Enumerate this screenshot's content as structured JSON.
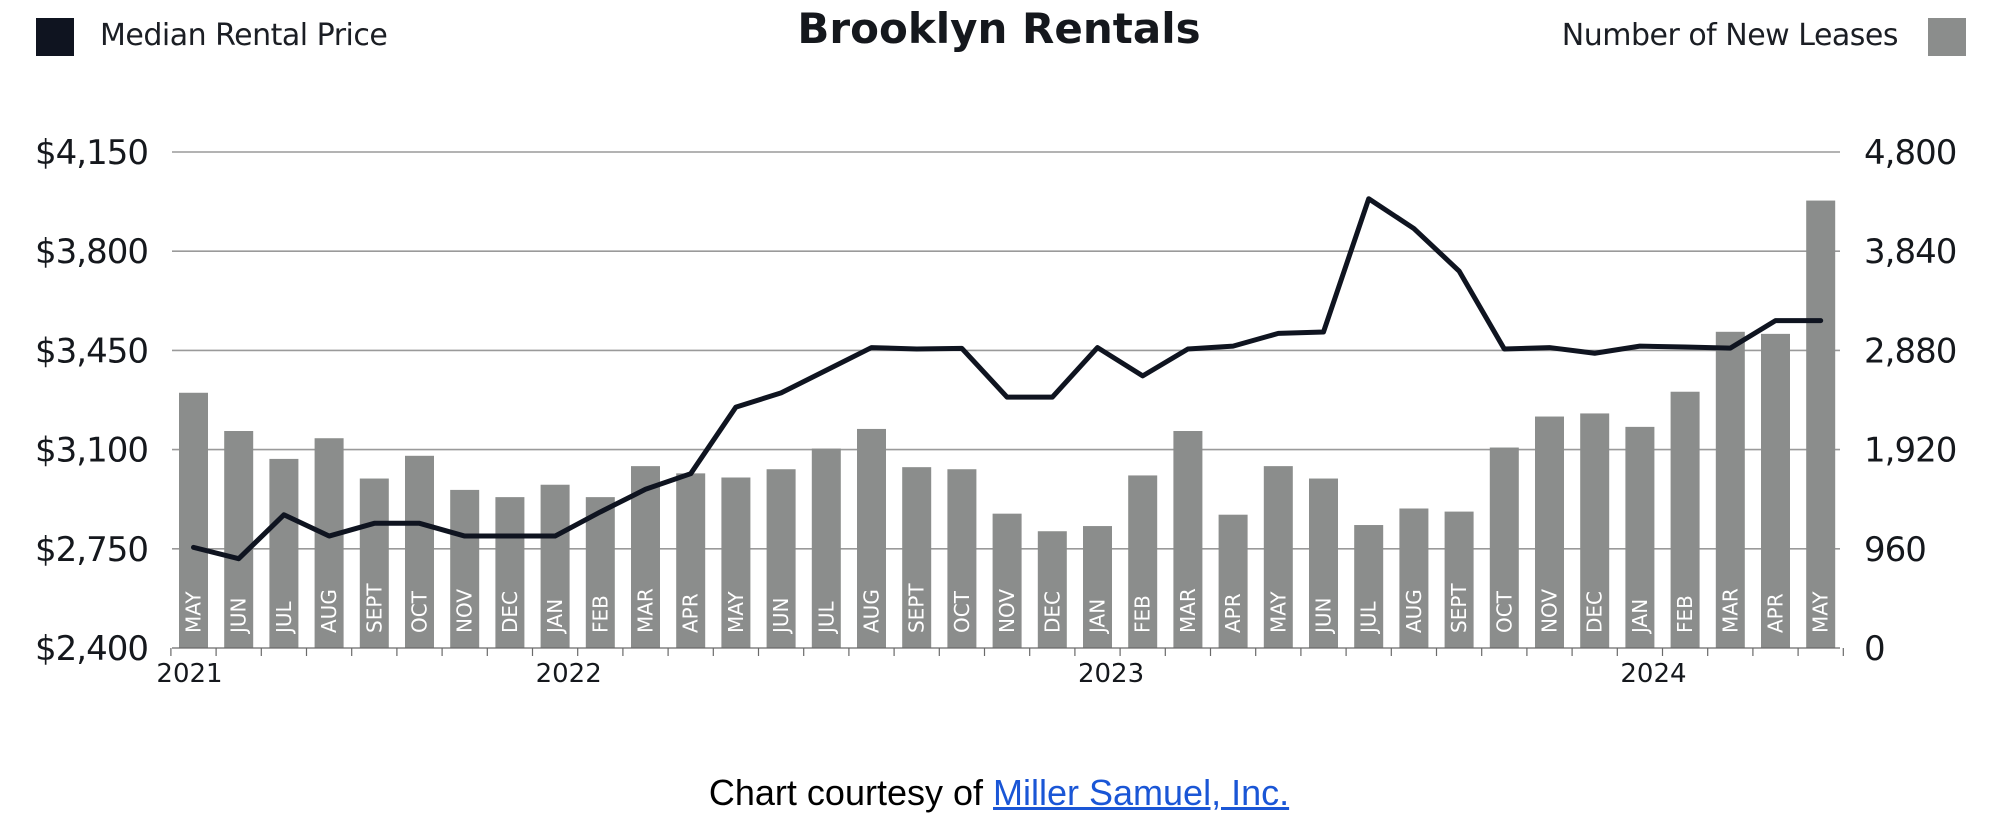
{
  "title": "Brooklyn Rentals",
  "legend": {
    "left_label": "Median Rental Price",
    "right_label": "Number of New Leases",
    "left_color": "#0f1420",
    "right_color": "#8b8d8c"
  },
  "credit": {
    "prefix": "Chart courtesy of ",
    "link_text": "Miller Samuel, Inc."
  },
  "colors": {
    "bar": "#8b8d8c",
    "line": "#0f1420",
    "grid": "#9a9a9a"
  },
  "chart_data": {
    "type": "bar",
    "title": "Brooklyn Rentals",
    "categories": [
      "MAY",
      "JUN",
      "JUL",
      "AUG",
      "SEPT",
      "OCT",
      "NOV",
      "DEC",
      "JAN",
      "FEB",
      "MAR",
      "APR",
      "MAY",
      "JUN",
      "JUL",
      "AUG",
      "SEPT",
      "OCT",
      "NOV",
      "DEC",
      "JAN",
      "FEB",
      "MAR",
      "APR",
      "MAY",
      "JUN",
      "JUL",
      "AUG",
      "SEPT",
      "OCT",
      "NOV",
      "DEC",
      "JAN",
      "FEB",
      "MAR",
      "APR",
      "MAY"
    ],
    "years": [
      {
        "label": "2021",
        "index": 0
      },
      {
        "label": "2022",
        "index": 8
      },
      {
        "label": "2023",
        "index": 20
      },
      {
        "label": "2024",
        "index": 32
      }
    ],
    "y_left": {
      "label": "",
      "ticks": [
        "$2,400",
        "$2,750",
        "$3,100",
        "$3,450",
        "$3,800",
        "$4,150"
      ],
      "lim": [
        2400,
        4150
      ]
    },
    "y_right": {
      "label": "",
      "ticks": [
        "0",
        "960",
        "1,920",
        "2,880",
        "3,840",
        "4,800"
      ],
      "lim": [
        0,
        4800
      ]
    },
    "grid": true,
    "legend_position": "top",
    "series": [
      {
        "name": "Number of New Leases",
        "type": "bar",
        "axis": "right",
        "values": [
          2470,
          2100,
          1830,
          2030,
          1640,
          1860,
          1530,
          1460,
          1580,
          1460,
          1760,
          1690,
          1650,
          1730,
          1930,
          2120,
          1750,
          1730,
          1300,
          1130,
          1180,
          1670,
          2100,
          1290,
          1760,
          1640,
          1190,
          1350,
          1320,
          1940,
          2240,
          2270,
          2140,
          2480,
          3060,
          3040,
          4330
        ]
      },
      {
        "name": "Median Rental Price",
        "type": "line",
        "axis": "left",
        "values": [
          2755,
          2715,
          2870,
          2795,
          2840,
          2840,
          2795,
          2795,
          2795,
          2880,
          2960,
          3015,
          3250,
          3300,
          3380,
          3460,
          3455,
          3457,
          3285,
          3285,
          3460,
          3360,
          3455,
          3465,
          3510,
          3515,
          3985,
          3880,
          3730,
          3455,
          3460,
          3440,
          3465,
          3462,
          3458,
          3555,
          3555
        ]
      }
    ]
  }
}
